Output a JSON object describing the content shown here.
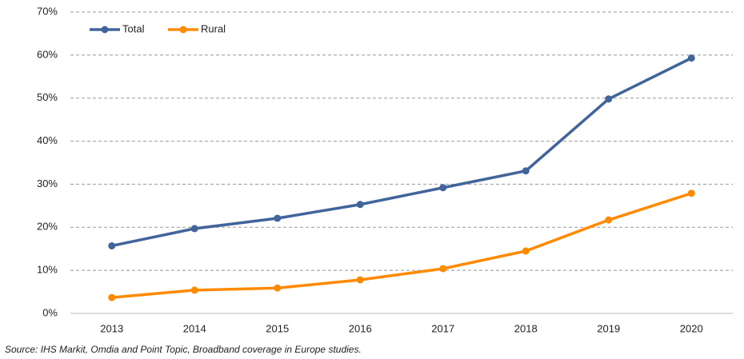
{
  "chart_data": {
    "type": "line",
    "source": "Source: IHS Markit, Omdia and Point Topic, Broadband coverage in Europe studies.",
    "categories": [
      "2013",
      "2014",
      "2015",
      "2016",
      "2017",
      "2018",
      "2019",
      "2020"
    ],
    "series": [
      {
        "name": "Total",
        "color": "#41659a",
        "values": [
          15.7,
          19.7,
          22.1,
          25.3,
          29.2,
          33.1,
          49.8,
          59.3
        ]
      },
      {
        "name": "Rural",
        "color": "#ff8a00",
        "values": [
          3.7,
          5.4,
          5.9,
          7.8,
          10.4,
          14.5,
          21.7,
          27.9
        ]
      }
    ],
    "ylim": [
      0,
      70
    ],
    "yticks": [
      {
        "value": 0,
        "label": "0%"
      },
      {
        "value": 10,
        "label": "10%"
      },
      {
        "value": 20,
        "label": "20%"
      },
      {
        "value": 30,
        "label": "30%"
      },
      {
        "value": 40,
        "label": "40%"
      },
      {
        "value": 50,
        "label": "50%"
      },
      {
        "value": 60,
        "label": "60%"
      },
      {
        "value": 70,
        "label": "70%"
      }
    ],
    "grid": true,
    "legend": "top-left"
  }
}
